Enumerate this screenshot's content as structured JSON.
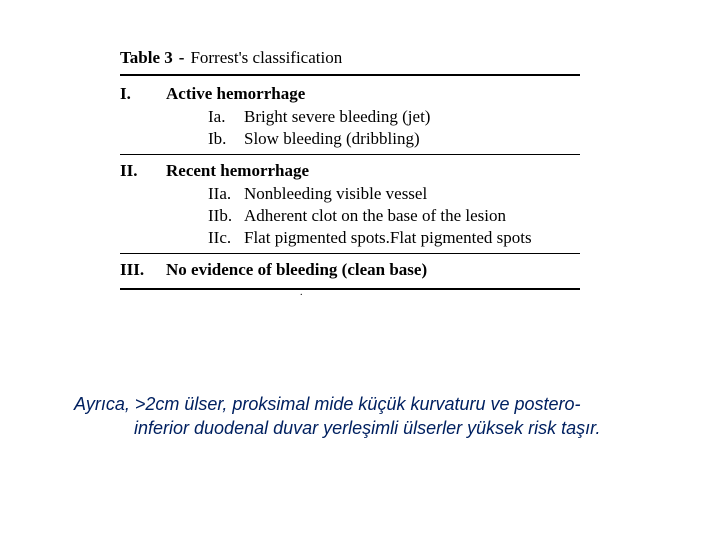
{
  "colors": {
    "background": "#ffffff",
    "text": "#000000",
    "caption_text": "#002060",
    "rule": "#000000"
  },
  "typography": {
    "table_font_family": "Times New Roman",
    "table_font_size_pt": 13,
    "caption_font_family": "Tahoma",
    "caption_font_size_pt": 14,
    "caption_italic": true
  },
  "table": {
    "label_bold": "Table 3",
    "label_sep": "-",
    "title": "Forrest's classification",
    "categories": [
      {
        "roman": "I.",
        "heading": "Active hemorrhage",
        "rows": [
          {
            "label": "Ia.",
            "text": "Bright severe bleeding (jet)"
          },
          {
            "label": "Ib.",
            "text": "Slow bleeding (dribbling)"
          }
        ]
      },
      {
        "roman": "II.",
        "heading": "Recent hemorrhage",
        "rows": [
          {
            "label": "IIa.",
            "text": "Nonbleeding visible vessel"
          },
          {
            "label": "IIb.",
            "text": "Adherent clot on the base of the lesion"
          },
          {
            "label": "IIc.",
            "text": "Flat pigmented spots.Flat pigmented spots"
          }
        ]
      },
      {
        "roman": "III.",
        "heading": "No evidence of bleeding (clean base)",
        "rows": []
      }
    ],
    "footnote_dot": "."
  },
  "caption": {
    "line1": "Ayrıca,  >2cm ülser, proksimal mide küçük kurvaturu ve postero-",
    "line2": "inferior duodenal duvar yerleşimli ülserler yüksek risk taşır."
  }
}
